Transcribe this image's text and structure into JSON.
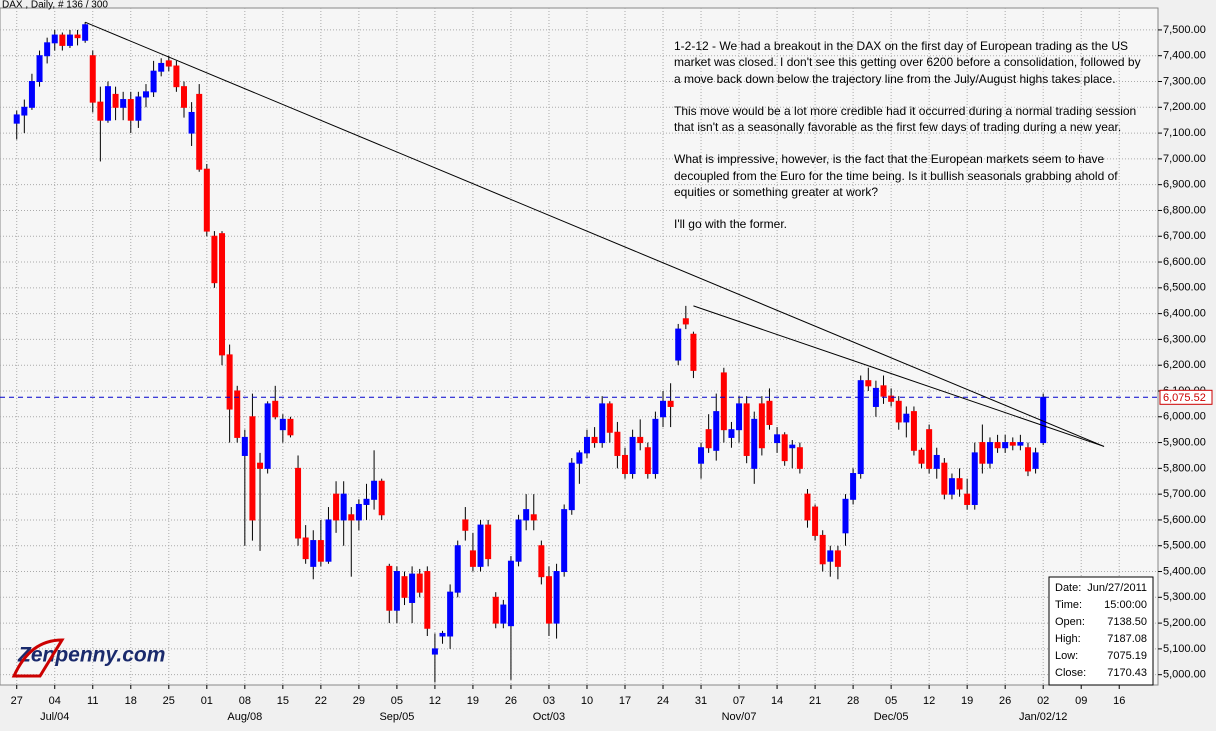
{
  "chart_data": {
    "type": "candlestick",
    "title": "DAX , Daily, # 136 / 300",
    "up_color": "#0000ff",
    "down_color": "#ff0000",
    "grid": true,
    "ylim": [
      4960,
      7585
    ],
    "xlim": [
      -2.2,
      150.1
    ],
    "yticks": [
      {
        "value": 5000,
        "label": "5,000.00"
      },
      {
        "value": 5100,
        "label": "5,100.00"
      },
      {
        "value": 5200,
        "label": "5,200.00"
      },
      {
        "value": 5300,
        "label": "5,300.00"
      },
      {
        "value": 5400,
        "label": "5,400.00"
      },
      {
        "value": 5500,
        "label": "5,500.00"
      },
      {
        "value": 5600,
        "label": "5,600.00"
      },
      {
        "value": 5700,
        "label": "5,700.00"
      },
      {
        "value": 5800,
        "label": "5,800.00"
      },
      {
        "value": 5900,
        "label": "5,900.00"
      },
      {
        "value": 6000,
        "label": "6,000.00"
      },
      {
        "value": 6100,
        "label": "6,100.00"
      },
      {
        "value": 6200,
        "label": "6,200.00"
      },
      {
        "value": 6300,
        "label": "6,300.00"
      },
      {
        "value": 6400,
        "label": "6,400.00"
      },
      {
        "value": 6500,
        "label": "6,500.00"
      },
      {
        "value": 6600,
        "label": "6,600.00"
      },
      {
        "value": 6700,
        "label": "6,700.00"
      },
      {
        "value": 6800,
        "label": "6,800.00"
      },
      {
        "value": 6900,
        "label": "6,900.00"
      },
      {
        "value": 7000,
        "label": "7,000.00"
      },
      {
        "value": 7100,
        "label": "7,100.00"
      },
      {
        "value": 7200,
        "label": "7,200.00"
      },
      {
        "value": 7300,
        "label": "7,300.00"
      },
      {
        "value": 7400,
        "label": "7,400.00"
      },
      {
        "value": 7500,
        "label": "7,500.00"
      }
    ],
    "xticks": [
      {
        "value": 0,
        "label": "27"
      },
      {
        "value": 5,
        "label": "04"
      },
      {
        "value": 10,
        "label": "11"
      },
      {
        "value": 15,
        "label": "18"
      },
      {
        "value": 20,
        "label": "25"
      },
      {
        "value": 25,
        "label": "01"
      },
      {
        "value": 30,
        "label": "08"
      },
      {
        "value": 35,
        "label": "15"
      },
      {
        "value": 40,
        "label": "22"
      },
      {
        "value": 45,
        "label": "29"
      },
      {
        "value": 50,
        "label": "05"
      },
      {
        "value": 55,
        "label": "12"
      },
      {
        "value": 60,
        "label": "19"
      },
      {
        "value": 65,
        "label": "26"
      },
      {
        "value": 70,
        "label": "03"
      },
      {
        "value": 75,
        "label": "10"
      },
      {
        "value": 80,
        "label": "17"
      },
      {
        "value": 85,
        "label": "24"
      },
      {
        "value": 90,
        "label": "31"
      },
      {
        "value": 95,
        "label": "07"
      },
      {
        "value": 100,
        "label": "14"
      },
      {
        "value": 105,
        "label": "21"
      },
      {
        "value": 110,
        "label": "28"
      },
      {
        "value": 115,
        "label": "05"
      },
      {
        "value": 120,
        "label": "12"
      },
      {
        "value": 125,
        "label": "19"
      },
      {
        "value": 130,
        "label": "26"
      },
      {
        "value": 135,
        "label": "02"
      },
      {
        "value": 140,
        "label": "09"
      },
      {
        "value": 145,
        "label": "16"
      }
    ],
    "month_ticks": [
      {
        "value": 5,
        "label": "Jul/04"
      },
      {
        "value": 30,
        "label": "Aug/08"
      },
      {
        "value": 50,
        "label": "Sep/05"
      },
      {
        "value": 70,
        "label": "Oct/03"
      },
      {
        "value": 95,
        "label": "Nov/07"
      },
      {
        "value": 115,
        "label": "Dec/05"
      },
      {
        "value": 135,
        "label": "Jan/02/12"
      }
    ],
    "open": [
      7138.5,
      7170,
      7200,
      7300,
      7400,
      7450,
      7480,
      7440,
      7480,
      7460,
      7400,
      7220,
      7150,
      7250,
      7200,
      7230,
      7150,
      7240,
      7260,
      7340,
      7380,
      7360,
      7280,
      7100,
      7250,
      6960,
      6700,
      6710,
      6240,
      6100,
      5850,
      6000,
      5820,
      5800,
      6060,
      5950,
      5990,
      5800,
      5530,
      5420,
      5520,
      5440,
      5700,
      5600,
      5620,
      5600,
      5660,
      5680,
      5750,
      5420,
      5250,
      5380,
      5280,
      5390,
      5400,
      5080,
      5150,
      5150,
      5320,
      5600,
      5480,
      5420,
      5580,
      5300,
      5200,
      5190,
      5440,
      5600,
      5620,
      5500,
      5380,
      5200,
      5400,
      5640,
      5820,
      5860,
      5920,
      5900,
      6050,
      5940,
      5850,
      5780,
      5920,
      5880,
      5780,
      6000,
      6060,
      6220,
      6380,
      6320,
      5820,
      5950,
      5870,
      6170,
      5920,
      5950,
      6050,
      5800,
      6050,
      6060,
      5900,
      5930,
      5880,
      5880,
      5700,
      5650,
      5540,
      5440,
      5480,
      5550,
      5680,
      5780,
      6140,
      6040,
      6120,
      6080,
      6060,
      5980,
      6020,
      5870,
      5950,
      5800,
      5820,
      5700,
      5760,
      5700,
      5660,
      5900,
      5820,
      5900,
      5880,
      5900,
      5890,
      5880,
      5800,
      5900
    ],
    "high": [
      7187.08,
      7230,
      7330,
      7420,
      7470,
      7500,
      7490,
      7500,
      7500,
      7530,
      7420,
      7280,
      7300,
      7280,
      7260,
      7260,
      7260,
      7290,
      7380,
      7390,
      7400,
      7380,
      7300,
      7220,
      7290,
      6980,
      6720,
      6720,
      6280,
      6120,
      5950,
      6090,
      5860,
      6060,
      6120,
      6010,
      6000,
      5850,
      5580,
      5560,
      5600,
      5650,
      5750,
      5750,
      5650,
      5680,
      5740,
      5870,
      5760,
      5430,
      5420,
      5400,
      5420,
      5410,
      5420,
      5160,
      5170,
      5350,
      5520,
      5650,
      5550,
      5600,
      5600,
      5320,
      5290,
      5460,
      5620,
      5700,
      5700,
      5520,
      5420,
      5430,
      5660,
      5840,
      5870,
      5950,
      5960,
      6080,
      6060,
      5980,
      5880,
      5950,
      5990,
      5900,
      6020,
      6100,
      6130,
      6360,
      6430,
      6330,
      5900,
      6010,
      6090,
      6190,
      5980,
      6080,
      6080,
      6020,
      6080,
      6110,
      5960,
      5940,
      5910,
      5900,
      5720,
      5660,
      5560,
      5500,
      5500,
      5700,
      5800,
      6160,
      6190,
      6140,
      6160,
      6110,
      6080,
      6040,
      6040,
      5880,
      5970,
      5880,
      5840,
      5780,
      5800,
      5760,
      5900,
      5970,
      5920,
      5930,
      5930,
      5920,
      5930,
      5900,
      5880,
      6090
    ],
    "low": [
      7075.19,
      7100,
      7190,
      7280,
      7370,
      7420,
      7420,
      7430,
      7440,
      7450,
      7180,
      6990,
      7140,
      7150,
      7150,
      7100,
      7120,
      7200,
      7240,
      7320,
      7340,
      7260,
      7160,
      7050,
      6950,
      6700,
      6500,
      6200,
      5900,
      5900,
      5500,
      5520,
      5480,
      5780,
      5990,
      5900,
      5920,
      5500,
      5430,
      5370,
      5420,
      5430,
      5550,
      5500,
      5380,
      5560,
      5600,
      5640,
      5600,
      5200,
      5200,
      5270,
      5200,
      5300,
      5150,
      4970,
      5120,
      5100,
      5300,
      5520,
      5400,
      5400,
      5420,
      5180,
      5180,
      4980,
      5420,
      5560,
      5560,
      5350,
      5150,
      5140,
      5380,
      5620,
      5740,
      5840,
      5880,
      5880,
      5900,
      5800,
      5760,
      5760,
      5870,
      5760,
      5760,
      5960,
      5960,
      6200,
      6340,
      6150,
      5760,
      5860,
      5830,
      5900,
      5880,
      5900,
      5820,
      5740,
      5850,
      5950,
      5860,
      5810,
      5800,
      5780,
      5570,
      5520,
      5400,
      5380,
      5370,
      5500,
      5660,
      5760,
      6100,
      6000,
      6050,
      6040,
      5950,
      5920,
      5850,
      5800,
      5780,
      5760,
      5680,
      5680,
      5690,
      5640,
      5640,
      5780,
      5800,
      5860,
      5860,
      5870,
      5870,
      5770,
      5780,
      5890
    ],
    "close": [
      7170.43,
      7200,
      7300,
      7400,
      7450,
      7480,
      7440,
      7480,
      7470,
      7520,
      7220,
      7150,
      7280,
      7200,
      7230,
      7150,
      7240,
      7260,
      7340,
      7370,
      7360,
      7280,
      7200,
      7180,
      6960,
      6720,
      6520,
      6240,
      6030,
      5920,
      5920,
      5600,
      5800,
      6050,
      6000,
      5990,
      5930,
      5530,
      5450,
      5520,
      5440,
      5600,
      5600,
      5700,
      5600,
      5660,
      5680,
      5750,
      5620,
      5250,
      5400,
      5300,
      5390,
      5320,
      5180,
      5100,
      5160,
      5320,
      5500,
      5560,
      5420,
      5580,
      5450,
      5200,
      5270,
      5440,
      5600,
      5640,
      5600,
      5380,
      5200,
      5400,
      5640,
      5820,
      5860,
      5920,
      5900,
      6050,
      5940,
      5850,
      5780,
      5920,
      5900,
      5780,
      5990,
      6060,
      6040,
      6340,
      6360,
      6180,
      5880,
      5880,
      6020,
      5950,
      5950,
      6050,
      5850,
      5990,
      5880,
      5970,
      5930,
      5830,
      5890,
      5800,
      5600,
      5540,
      5430,
      5480,
      5420,
      5680,
      5780,
      6140,
      6120,
      6110,
      6080,
      6060,
      5980,
      6010,
      5870,
      5820,
      5800,
      5850,
      5700,
      5760,
      5720,
      5660,
      5860,
      5820,
      5900,
      5880,
      5900,
      5890,
      5900,
      5790,
      5860,
      6075.52
    ],
    "last_price": {
      "value": 6075.52,
      "label": "6,075.52"
    },
    "trendlines": [
      {
        "x": [
          9,
          143
        ],
        "y": [
          7530,
          5885
        ]
      },
      {
        "x": [
          89,
          143
        ],
        "y": [
          6430,
          5885
        ]
      }
    ],
    "annotation": [
      "1-2-12 - We had a breakout in the DAX on the first day of European trading as the US market was closed. I don't see this getting over 6200 before a consolidation, followed by a move back down below the trajectory line from the July/August highs takes place.",
      "This move would be a lot more credible had it occurred during a normal trading session that isn't as a seasonally favorable as the first few days of trading during a new year.",
      "What is impressive, however, is the fact that the European markets seem to have decoupled from the Euro for the time being. Is it bullish seasonals grabbing ahold of equities or something greater at work?",
      "I'll go with the former."
    ],
    "info_box": [
      {
        "label": "Date:",
        "value": "Jun/27/2011"
      },
      {
        "label": "Time:",
        "value": "15:00:00"
      },
      {
        "label": "Open:",
        "value": "7138.50"
      },
      {
        "label": "High:",
        "value": "7187.08"
      },
      {
        "label": "Low:",
        "value": "7075.19"
      },
      {
        "label": "Close:",
        "value": "7170.43"
      }
    ]
  },
  "logo": "Zenpenny.com"
}
